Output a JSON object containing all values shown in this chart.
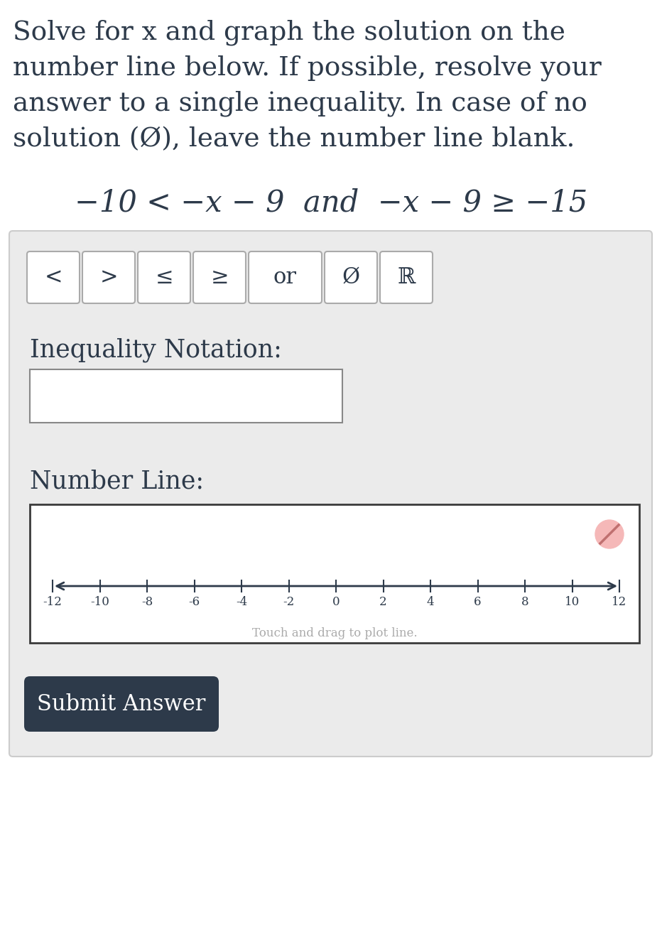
{
  "bg_color": "#ffffff",
  "text_color": "#2d3a4a",
  "instruction_lines": [
    "Solve for x and graph the solution on the",
    "number line below. If possible, resolve your",
    "answer to a single inequality. In case of no",
    "solution (Ø), leave the number line blank."
  ],
  "equation_text": "−10 < −x − 9  and  −x − 9 ≥ −15",
  "panel_bg": "#ebebeb",
  "panel_border": "#cccccc",
  "buttons": [
    "<",
    ">",
    "≤",
    "≥",
    "or",
    "Ø",
    "ℝ"
  ],
  "button_bg": "#ffffff",
  "button_border": "#aaaaaa",
  "inequality_label": "Inequality Notation:",
  "number_line_label": "Number Line:",
  "number_line_ticks": [
    -12,
    -10,
    -8,
    -6,
    -4,
    -2,
    0,
    2,
    4,
    6,
    8,
    10,
    12
  ],
  "number_line_drag_text": "Touch and drag to plot line.",
  "number_line_drag_color": "#aaaaaa",
  "number_line_box_bg": "#ffffff",
  "number_line_box_border": "#555555",
  "submit_bg": "#2d3a4a",
  "submit_text": "Submit Answer",
  "submit_text_color": "#ffffff",
  "cancel_icon_color": "#f5b8b8",
  "number_line_arrow_color": "#2d3a4a"
}
